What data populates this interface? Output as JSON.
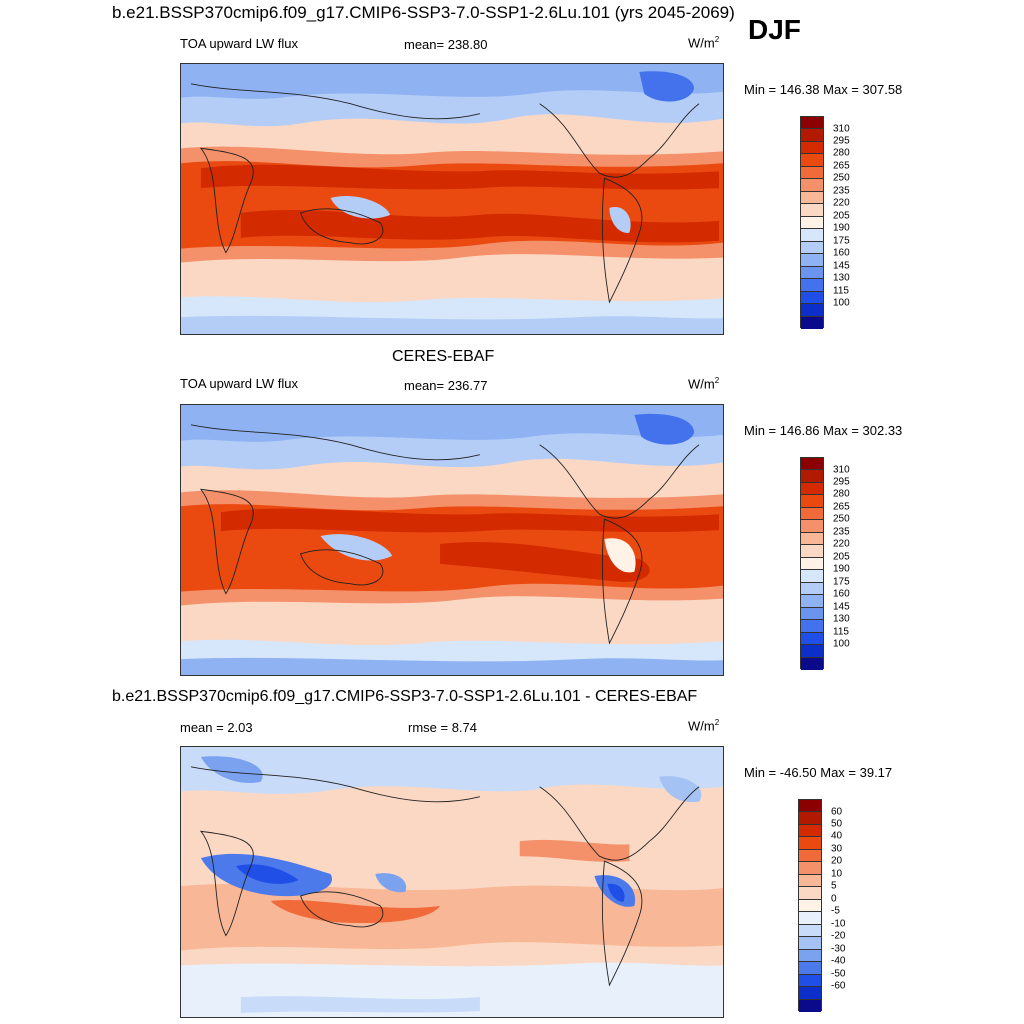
{
  "header": {
    "case_title": "b.e21.BSSP370cmip6.f09_g17.CMIP6-SSP3-7.0-SSP1-2.6Lu.101 (yrs 2045-2069)",
    "season": "DJF"
  },
  "panels": [
    {
      "variable": "TOA upward LW flux",
      "stat_text": "mean= 238.80",
      "units_base": "W/m",
      "units_exp": "2",
      "minmax": "Min = 146.38 Max = 307.58",
      "colorbar_labels": [
        "310",
        "295",
        "280",
        "265",
        "250",
        "235",
        "220",
        "205",
        "190",
        "175",
        "160",
        "145",
        "130",
        "115",
        "100"
      ]
    },
    {
      "title": "CERES-EBAF",
      "variable": "TOA upward LW flux",
      "stat_text": "mean= 236.77",
      "units_base": "W/m",
      "units_exp": "2",
      "minmax": "Min = 146.86 Max = 302.33",
      "colorbar_labels": [
        "310",
        "295",
        "280",
        "265",
        "250",
        "235",
        "220",
        "205",
        "190",
        "175",
        "160",
        "145",
        "130",
        "115",
        "100"
      ]
    },
    {
      "title": "b.e21.BSSP370cmip6.f09_g17.CMIP6-SSP3-7.0-SSP1-2.6Lu.101 - CERES-EBAF",
      "mean_text": "mean =   2.03",
      "rmse_text": "rmse =   8.74",
      "units_base": "W/m",
      "units_exp": "2",
      "minmax": "Min = -46.50 Max =  39.17",
      "colorbar_labels": [
        "60",
        "50",
        "40",
        "30",
        "20",
        "10",
        "5",
        "0",
        "-5",
        "-10",
        "-20",
        "-30",
        "-40",
        "-50",
        "-60"
      ]
    }
  ],
  "colors": {
    "abs_scale": [
      "#8b0000",
      "#b21a00",
      "#d42a00",
      "#ea4a10",
      "#f06a3a",
      "#f4906a",
      "#f8b898",
      "#fbd8c4",
      "#fff2e6",
      "#d6e6fb",
      "#b4cdf7",
      "#8fb3f2",
      "#6a94ee",
      "#4472ec",
      "#1f4fe6",
      "#0b2fc8",
      "#0a0a8a"
    ],
    "diff_scale": [
      "#8b0000",
      "#b21a00",
      "#d42a00",
      "#ea4a10",
      "#f06a3a",
      "#f4906a",
      "#f8b898",
      "#fbd8c4",
      "#fff2e6",
      "#e8f0fc",
      "#c8dbf8",
      "#a4c2f4",
      "#7aa2ef",
      "#4c7aea",
      "#1f4fe6",
      "#0b2fc8",
      "#0a0a8a"
    ],
    "accent_season": "#000000"
  }
}
